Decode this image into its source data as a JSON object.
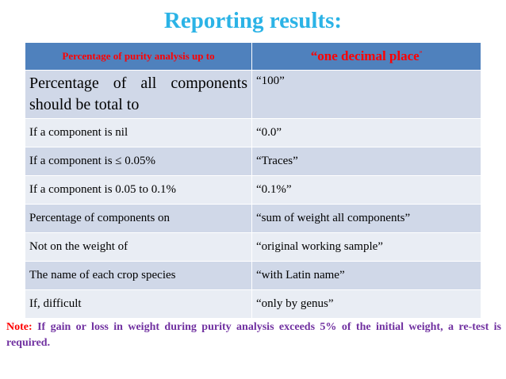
{
  "title": "Reporting results:",
  "colors": {
    "title": "#2bb3e6",
    "header_bg": "#4f81bd",
    "header_text": "#ff0000",
    "row_dark": "#d0d8e8",
    "row_light": "#e9edf4",
    "note_label": "#ff0000",
    "note_text": "#7030a0"
  },
  "table": {
    "header": {
      "left": "Percentage of purity analysis up to",
      "right": "“one decimal place",
      "right_mark": "”"
    },
    "rows": [
      {
        "left": "Percentage of all components should be total to",
        "right": "“100”"
      },
      {
        "left": "If a component is nil",
        "right": "“0.0”"
      },
      {
        "left": "If a component is ≤ 0.05%",
        "right": "“Traces”"
      },
      {
        "left": "If a component is 0.05 to 0.1%",
        "right": "“0.1%”"
      },
      {
        "left": "Percentage of components on",
        "right": "“sum of weight all components”"
      },
      {
        "left": "Not on the weight of",
        "right": "“original working sample”"
      },
      {
        "left": "The name of each crop species",
        "right": "“with Latin name”"
      },
      {
        "left": "If, difficult",
        "right": "“only by genus”"
      }
    ]
  },
  "note": {
    "label": "Note:",
    "text": " If gain or loss in weight during purity analysis exceeds 5% of the initial weight, a re-test is required."
  }
}
